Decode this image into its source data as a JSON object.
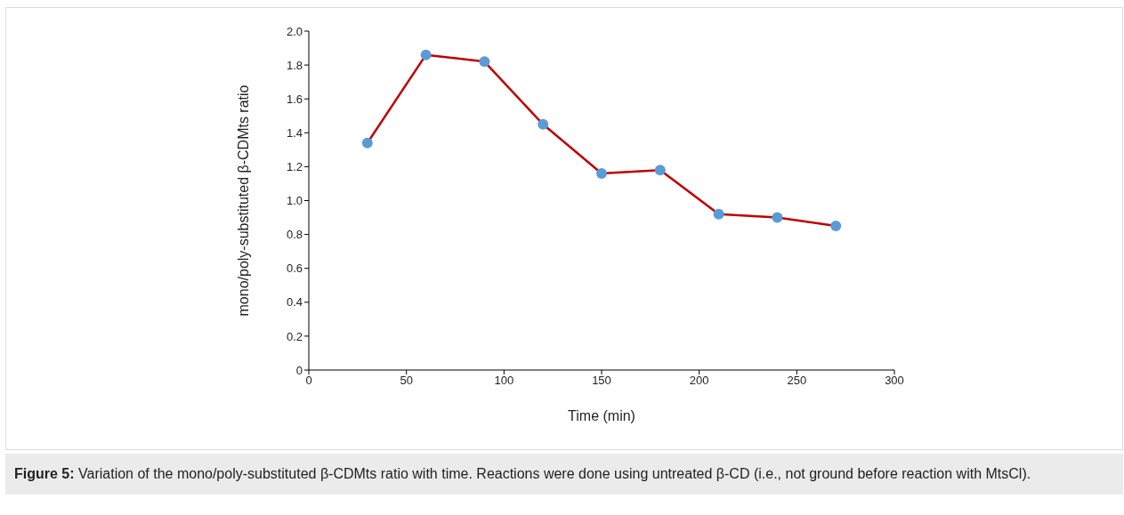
{
  "chart_data": {
    "type": "line",
    "xlabel": "Time (min)",
    "ylabel": "mono/poly-substituted β-CDMts ratio",
    "x": [
      30,
      60,
      90,
      120,
      150,
      180,
      210,
      240,
      270
    ],
    "series": [
      {
        "color": "#c00000",
        "colors": [
          "#5b9bd5",
          "#5b9bd5",
          "#5b9bd5",
          "#5b9bd5",
          "#5b9bd5",
          "#5b9bd5",
          "#5b9bd5",
          "#5b9bd5",
          "#5b9bd5"
        ],
        "values": [
          1.34,
          1.86,
          1.82,
          1.45,
          1.16,
          1.18,
          0.92,
          0.9,
          0.85
        ]
      }
    ],
    "xlim": [
      0,
      300
    ],
    "xticks": [
      0,
      50,
      100,
      150,
      200,
      250,
      300
    ],
    "ylim": [
      0,
      2
    ],
    "yticks": [
      0,
      0.2,
      0.4,
      0.6,
      0.8,
      {
        "value": 1,
        "label": "1.0"
      },
      1.2,
      1.4,
      1.6,
      1.8,
      {
        "value": 2,
        "label": "2.0"
      }
    ],
    "marker": "circle",
    "line_style": "solid",
    "annotations": [
      "Figure 5:",
      "Variation of the mono/poly-substituted β-CDMts ratio with time. Reactions were done using untreated β-CD (i.e., not ground before reaction with MtsCl)."
    ]
  }
}
